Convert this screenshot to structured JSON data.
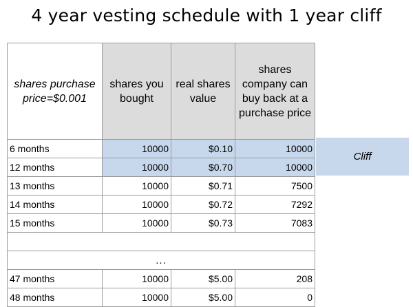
{
  "title": "4 year vesting schedule with 1 year cliff",
  "table": {
    "headers": [
      "shares purchase price=$0.001",
      "shares you bought",
      "real shares value",
      "shares company can buy back at a purchase price"
    ],
    "rows": [
      {
        "label": "6 months",
        "bought": "10000",
        "value": "$0.10",
        "buyback": "10000",
        "highlight": true
      },
      {
        "label": "12 months",
        "bought": "10000",
        "value": "$0.70",
        "buyback": "10000",
        "highlight": true
      },
      {
        "label": "13 months",
        "bought": "10000",
        "value": "$0.71",
        "buyback": "7500"
      },
      {
        "label": "14 months",
        "bought": "10000",
        "value": "$0.72",
        "buyback": "7292"
      },
      {
        "label": "15 months",
        "bought": "10000",
        "value": "$0.73",
        "buyback": "7083"
      }
    ],
    "gap_marker": "...",
    "tail_rows": [
      {
        "label": "47 months",
        "bought": "10000",
        "value": "$5.00",
        "buyback": "208"
      },
      {
        "label": "48 months",
        "bought": "10000",
        "value": "$5.00",
        "buyback": "0"
      }
    ]
  },
  "cliff_label": "Cliff",
  "colors": {
    "highlight": "#c7d7ec",
    "header_gray": "#dcdcdc",
    "grid": "#9a9a9a"
  }
}
